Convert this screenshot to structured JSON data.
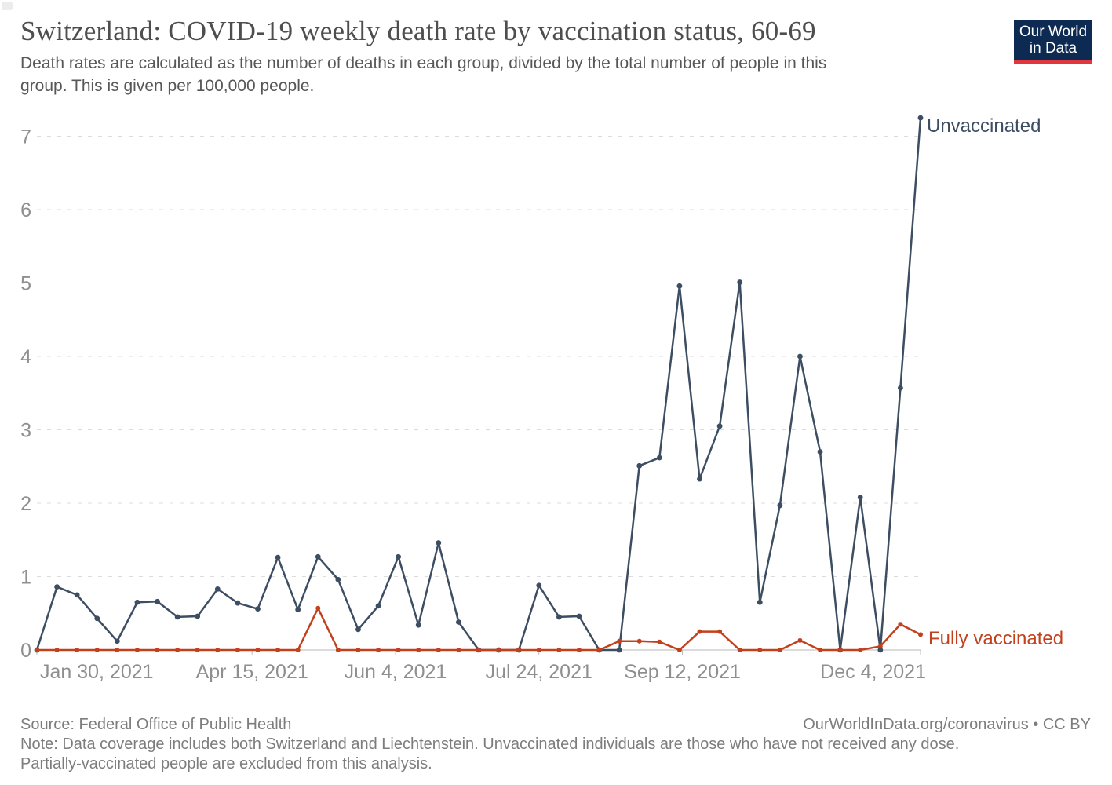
{
  "header": {
    "title": "Switzerland: COVID-19 weekly death rate by vaccination status, 60-69",
    "subtitle_line1": "Death rates are calculated as the number of deaths in each group, divided by the total number of people in this",
    "subtitle_line2": "group. This is given per 100,000 people.",
    "logo": {
      "line1": "Our World",
      "line2": "in Data",
      "bg_color": "#0d2a52",
      "bar_color": "#e0373f"
    }
  },
  "chart_data": {
    "type": "line",
    "title": "Switzerland: COVID-19 weekly death rate by vaccination status, 60-69",
    "x_unit": "week",
    "x_range_days": 308,
    "x_ticks": [
      {
        "label": "Jan 30, 2021",
        "day": 0,
        "align": "start"
      },
      {
        "label": "Apr 15, 2021",
        "day": 75
      },
      {
        "label": "Jun 4, 2021",
        "day": 125
      },
      {
        "label": "Jul 24, 2021",
        "day": 175
      },
      {
        "label": "Sep 12, 2021",
        "day": 225
      },
      {
        "label": "Dec 4, 2021",
        "day": 308,
        "align": "end"
      }
    ],
    "y_ticks": [
      0,
      1,
      2,
      3,
      4,
      5,
      6,
      7
    ],
    "ylim": [
      0,
      7.3
    ],
    "grid": "horizontal dashed",
    "legend_position": "labels at line ends (right)",
    "series": [
      {
        "name": "Unvaccinated",
        "color": "#3d4e63",
        "values": [
          0,
          0.86,
          0.75,
          0.43,
          0.12,
          0.65,
          0.66,
          0.45,
          0.46,
          0.83,
          0.64,
          0.56,
          1.26,
          0.55,
          1.27,
          0.96,
          0.28,
          0.6,
          1.27,
          0.34,
          1.46,
          0.38,
          0,
          0,
          0,
          0.88,
          0.45,
          0.46,
          0,
          0,
          2.51,
          2.62,
          4.96,
          2.33,
          3.05,
          5.01,
          0.65,
          1.97,
          4.0,
          2.7,
          0,
          2.08,
          0,
          3.57,
          7.25
        ]
      },
      {
        "name": "Fully vaccinated",
        "color": "#c2411c",
        "values": [
          0,
          0,
          0,
          0,
          0,
          0,
          0,
          0,
          0,
          0,
          0,
          0,
          0,
          0,
          0.57,
          0,
          0,
          0,
          0,
          0,
          0,
          0,
          0,
          0,
          0,
          0,
          0,
          0,
          0,
          0.12,
          0.12,
          0.11,
          0,
          0.25,
          0.25,
          0,
          0,
          0,
          0.13,
          0,
          0,
          0,
          0.05,
          0.35,
          0.21
        ]
      }
    ]
  },
  "footer": {
    "source": "Source: Federal Office of Public Health",
    "note_line1": "Note: Data coverage includes both Switzerland and Liechtenstein. Unvaccinated individuals are those who have not received any dose.",
    "note_line2": "Partially-vaccinated people are excluded from this analysis.",
    "attribution": "OurWorldInData.org/coronavirus • CC BY"
  }
}
